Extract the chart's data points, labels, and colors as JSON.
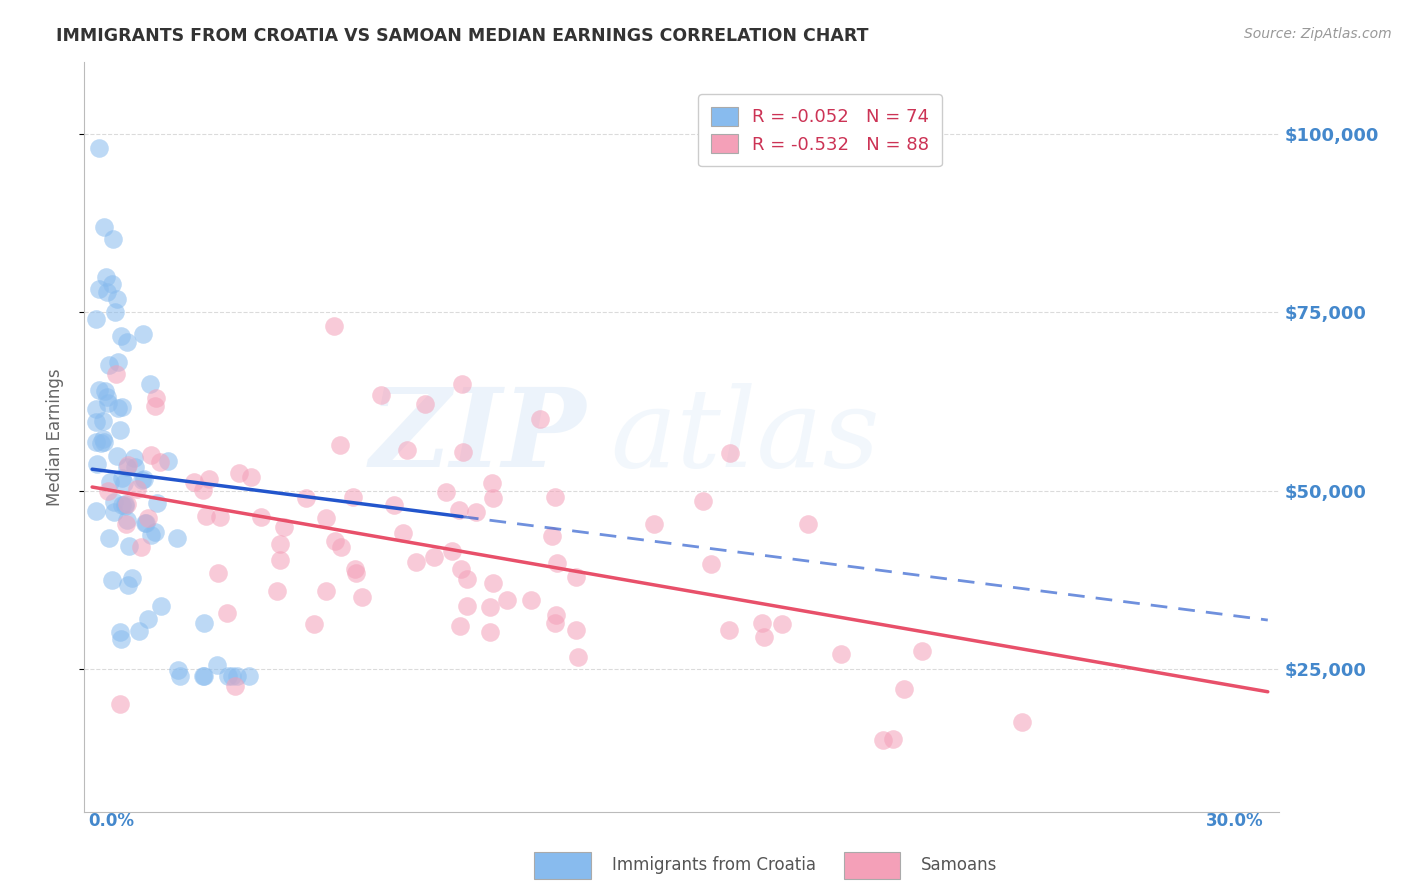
{
  "title": "IMMIGRANTS FROM CROATIA VS SAMOAN MEDIAN EARNINGS CORRELATION CHART",
  "source": "Source: ZipAtlas.com",
  "ylabel": "Median Earnings",
  "ytick_labels": [
    "$25,000",
    "$50,000",
    "$75,000",
    "$100,000"
  ],
  "ytick_values": [
    25000,
    50000,
    75000,
    100000
  ],
  "ylim": [
    5000,
    110000
  ],
  "xlim": [
    -0.002,
    0.305
  ],
  "croatia_color": "#88BBEE",
  "samoan_color": "#F4A0B8",
  "croatia_line_color": "#2255CC",
  "samoan_line_color": "#E8506A",
  "background_color": "#FFFFFF",
  "grid_color": "#CCCCCC",
  "title_color": "#333333",
  "axis_label_color": "#4488CC",
  "legend_croatia_r": "-0.052",
  "legend_croatia_n": "74",
  "legend_samoan_r": "-0.532",
  "legend_samoan_n": "88",
  "watermark_zip": "ZIP",
  "watermark_atlas": "atlas"
}
